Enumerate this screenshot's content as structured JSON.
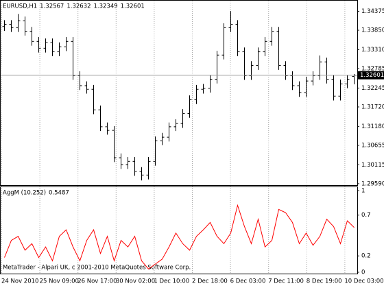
{
  "chart_data": [
    {
      "type": "ohlc",
      "symbol": "EURUSD,H1",
      "color": "#000000",
      "open": [
        1.3395,
        1.3401,
        1.3392,
        1.3411,
        1.3382,
        1.3354,
        1.3335,
        1.335,
        1.3325,
        1.3339,
        1.3354,
        1.3259,
        1.3231,
        1.3221,
        1.3164,
        1.3117,
        1.3107,
        1.3031,
        1.3012,
        1.3021,
        1.2993,
        1.2983,
        1.3021,
        1.3078,
        1.3088,
        1.3117,
        1.3126,
        1.3154,
        1.3192,
        1.3221,
        1.3224,
        1.3249,
        1.3316,
        1.3392,
        1.3401,
        1.3325,
        1.3259,
        1.3287,
        1.3325,
        1.3354,
        1.3382,
        1.3287,
        1.3259,
        1.3231,
        1.3212,
        1.3244,
        1.3259,
        1.3297,
        1.3249,
        1.3202,
        1.3236,
        1.32567
      ],
      "high": [
        1.3413,
        1.3413,
        1.343,
        1.3423,
        1.3394,
        1.3366,
        1.3362,
        1.3362,
        1.3351,
        1.3366,
        1.3366,
        1.3271,
        1.3243,
        1.3233,
        1.3176,
        1.3129,
        1.3119,
        1.3043,
        1.3033,
        1.3033,
        1.3005,
        1.3033,
        1.309,
        1.31,
        1.3129,
        1.3138,
        1.3166,
        1.3204,
        1.3233,
        1.3236,
        1.3261,
        1.3328,
        1.3404,
        1.3438,
        1.3413,
        1.3337,
        1.3299,
        1.3337,
        1.3366,
        1.3394,
        1.3394,
        1.3299,
        1.3271,
        1.3243,
        1.3256,
        1.3271,
        1.3315,
        1.3309,
        1.3261,
        1.3248,
        1.3261,
        1.32632
      ],
      "low": [
        1.3383,
        1.338,
        1.338,
        1.337,
        1.3342,
        1.3323,
        1.3323,
        1.3313,
        1.3313,
        1.3327,
        1.3247,
        1.3219,
        1.3209,
        1.3152,
        1.3105,
        1.3095,
        1.3019,
        1.3,
        1.3,
        1.2981,
        1.2968,
        1.2971,
        1.3009,
        1.3066,
        1.3076,
        1.3105,
        1.3114,
        1.3142,
        1.318,
        1.3209,
        1.3212,
        1.3237,
        1.3304,
        1.338,
        1.3313,
        1.3247,
        1.3247,
        1.3275,
        1.3313,
        1.3342,
        1.3275,
        1.3247,
        1.3219,
        1.32,
        1.32,
        1.3232,
        1.3247,
        1.3237,
        1.319,
        1.319,
        1.3224,
        1.32349
      ],
      "close": [
        1.3401,
        1.3392,
        1.3411,
        1.3382,
        1.3354,
        1.3335,
        1.335,
        1.3325,
        1.3339,
        1.3354,
        1.3259,
        1.3231,
        1.3221,
        1.3164,
        1.3117,
        1.3107,
        1.3031,
        1.3012,
        1.3021,
        1.2993,
        1.2983,
        1.3021,
        1.3078,
        1.3088,
        1.3117,
        1.3126,
        1.3154,
        1.3192,
        1.3221,
        1.3224,
        1.3249,
        1.3316,
        1.3392,
        1.3401,
        1.3325,
        1.3259,
        1.3287,
        1.3325,
        1.3354,
        1.3382,
        1.3287,
        1.3259,
        1.3231,
        1.3212,
        1.3244,
        1.3259,
        1.3297,
        1.3249,
        1.3202,
        1.3236,
        1.3249,
        1.32601
      ],
      "ylim": [
        1.2955,
        1.3465
      ],
      "yticks": [
        1.34375,
        {
          "value": 1.3385,
          "label": "1.33850"
        },
        {
          "value": 1.3331,
          "label": "1.33310"
        },
        1.32785,
        1.32245,
        {
          "value": 1.3172,
          "label": "1.31720"
        },
        {
          "value": 1.3118,
          "label": "1.31180"
        },
        1.30655,
        1.30115,
        {
          "value": 1.2959,
          "label": "1.29590"
        }
      ],
      "x_labels": [
        "24 Nov 2010",
        "25 Nov 09:00",
        "26 Nov 17:00",
        "30 Nov 02:00",
        "1 Dec 10:00",
        "2 Dec 18:00",
        "6 Dec 03:00",
        "7 Dec 11:00",
        "8 Dec 19:00",
        "10 Dec 03:00"
      ]
    },
    {
      "type": "line",
      "title": "AggM (10.252)",
      "color": "#ff0000",
      "values": [
        0.18,
        0.39,
        0.44,
        0.27,
        0.35,
        0.18,
        0.31,
        0.14,
        0.44,
        0.52,
        0.31,
        0.14,
        0.39,
        0.52,
        0.23,
        0.44,
        0.14,
        0.39,
        0.31,
        0.44,
        0.14,
        0.04,
        0.1,
        0.16,
        0.31,
        0.48,
        0.35,
        0.27,
        0.44,
        0.52,
        0.61,
        0.44,
        0.35,
        0.48,
        0.82,
        0.56,
        0.35,
        0.65,
        0.31,
        0.39,
        0.77,
        0.73,
        0.61,
        0.35,
        0.48,
        0.33,
        0.44,
        0.65,
        0.56,
        0.35,
        0.63,
        0.5487
      ],
      "ylim": [
        0,
        1
      ],
      "yticks": [
        1,
        0.7,
        0.2,
        0
      ]
    }
  ],
  "copyright": "MetaTrader - Alpari UK, c 2001-2010 MetaQuotes Software Corp."
}
